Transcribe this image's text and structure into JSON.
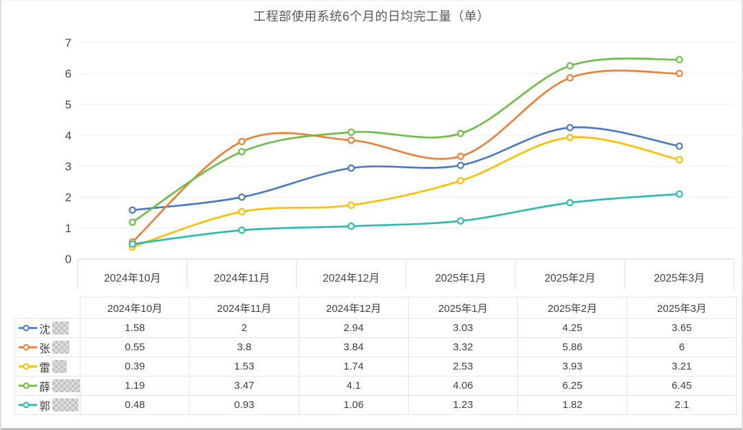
{
  "page": {
    "title": "工程部使用系统6个月的日均完工量（单）"
  },
  "chart_data": {
    "type": "line",
    "title": "工程部使用系统6个月的日均完工量（单）",
    "categories": [
      "2024年10月",
      "2024年11月",
      "2024年12月",
      "2025年1月",
      "2025年2月",
      "2025年3月"
    ],
    "series": [
      {
        "name": "沈",
        "redacted": true,
        "blur_width": 24,
        "color": "#4a7ac6",
        "values": [
          1.58,
          2,
          2.94,
          3.03,
          4.25,
          3.65
        ]
      },
      {
        "name": "张",
        "redacted": true,
        "blur_width": 25,
        "color": "#ef8035",
        "values": [
          0.55,
          3.8,
          3.84,
          3.32,
          5.86,
          6
        ]
      },
      {
        "name": "雷",
        "redacted": true,
        "blur_width": 21,
        "color": "#ffbf00",
        "values": [
          0.39,
          1.53,
          1.74,
          2.53,
          3.93,
          3.21
        ]
      },
      {
        "name": "薛",
        "redacted": true,
        "blur_width": 40,
        "color": "#6cbe45",
        "values": [
          1.19,
          3.47,
          4.1,
          4.06,
          6.25,
          6.45
        ]
      },
      {
        "name": "郭",
        "redacted": true,
        "blur_width": 38,
        "color": "#2cbcb0",
        "values": [
          0.48,
          0.93,
          1.06,
          1.23,
          1.82,
          2.1
        ]
      }
    ],
    "xlabel": "",
    "ylabel": "",
    "ylim": [
      0,
      7
    ],
    "yticks": [
      0,
      1,
      2,
      3,
      4,
      5,
      6,
      7
    ],
    "grid": true,
    "smooth": true,
    "marker": "open-circle",
    "legend_position": "table-rows-left",
    "table_header_row": [
      "2024年10月",
      "2024年11月",
      "2024年12月",
      "2025年1月",
      "2025年2月",
      "2025年3月"
    ]
  },
  "style_colors": {
    "grid_line": "#ececec",
    "axis_line": "#d2d2d2",
    "tick_divider": "#d9d9d9",
    "axis_text": "#4a4a4a",
    "table_border": "#e4e4e4",
    "title_text": "#595959"
  }
}
